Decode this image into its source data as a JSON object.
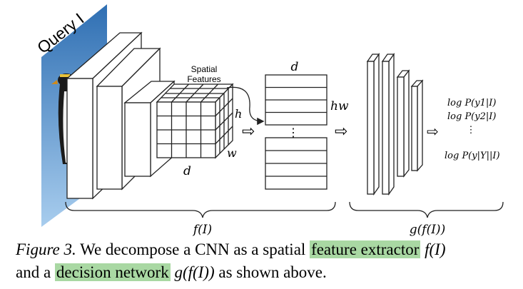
{
  "figure": {
    "query_label": "Query I",
    "spatial_features_label": [
      "Spatial",
      "Features"
    ],
    "dim_h": "h",
    "dim_w": "w",
    "dim_d_feature": "d",
    "matrix_d": "d",
    "matrix_hw": "hw",
    "vdots": "⋮",
    "arrow_symbol": "⇨",
    "brace_f": "f(I)",
    "brace_g": "g(f(I))",
    "outputs": [
      "log P(y1|I)",
      "log P(y2|I)",
      "⋮",
      "log P(y|Y||I)"
    ],
    "colors": {
      "sky_top": "#2f6fb3",
      "sky_bottom": "#9cc6ea",
      "stroke": "#222222"
    }
  },
  "caption": {
    "figure_label": "Figure 3.",
    "text_1": " We decompose a CNN as a spatial ",
    "highlight_1": "feature extractor",
    "math_1": " f(I)",
    "text_2": "and a ",
    "highlight_2": "decision network",
    "math_2": " g(f(I))",
    "text_3": " as shown above.",
    "highlight_color": "#a9d8a3"
  }
}
